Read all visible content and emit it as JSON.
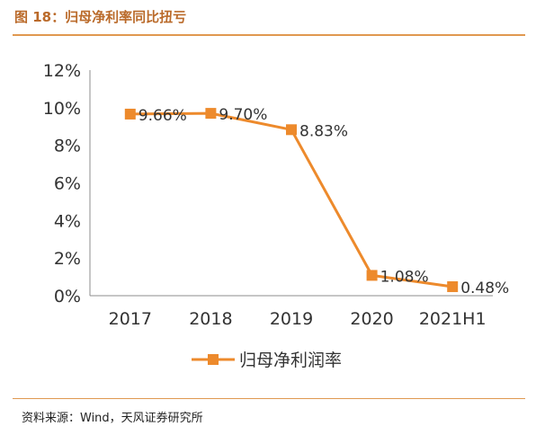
{
  "header": {
    "title": "图 18：归母净利率同比扭亏"
  },
  "footer": {
    "source": "资料来源：Wind，天风证券研究所"
  },
  "colors": {
    "series": "#ed8a2c",
    "title": "#ba6a2a",
    "rule": "#e09850",
    "axis": "#8c8c8c",
    "text": "#333333"
  },
  "chart_data": {
    "type": "line",
    "categories": [
      "2017",
      "2018",
      "2019",
      "2020",
      "2021H1"
    ],
    "series": [
      {
        "name": "归母净利润率",
        "values": [
          9.66,
          9.7,
          8.83,
          1.08,
          0.48
        ],
        "labels": [
          "9.66%",
          "9.70%",
          "8.83%",
          "1.08%",
          "0.48%"
        ],
        "marker": "square"
      }
    ],
    "y_ticks": [
      "12%",
      "10%",
      "8%",
      "6%",
      "4%",
      "2%",
      "0%"
    ],
    "ylim": [
      0,
      12
    ],
    "grid": false,
    "legend_position": "bottom",
    "title": "",
    "xlabel": "",
    "ylabel": ""
  }
}
